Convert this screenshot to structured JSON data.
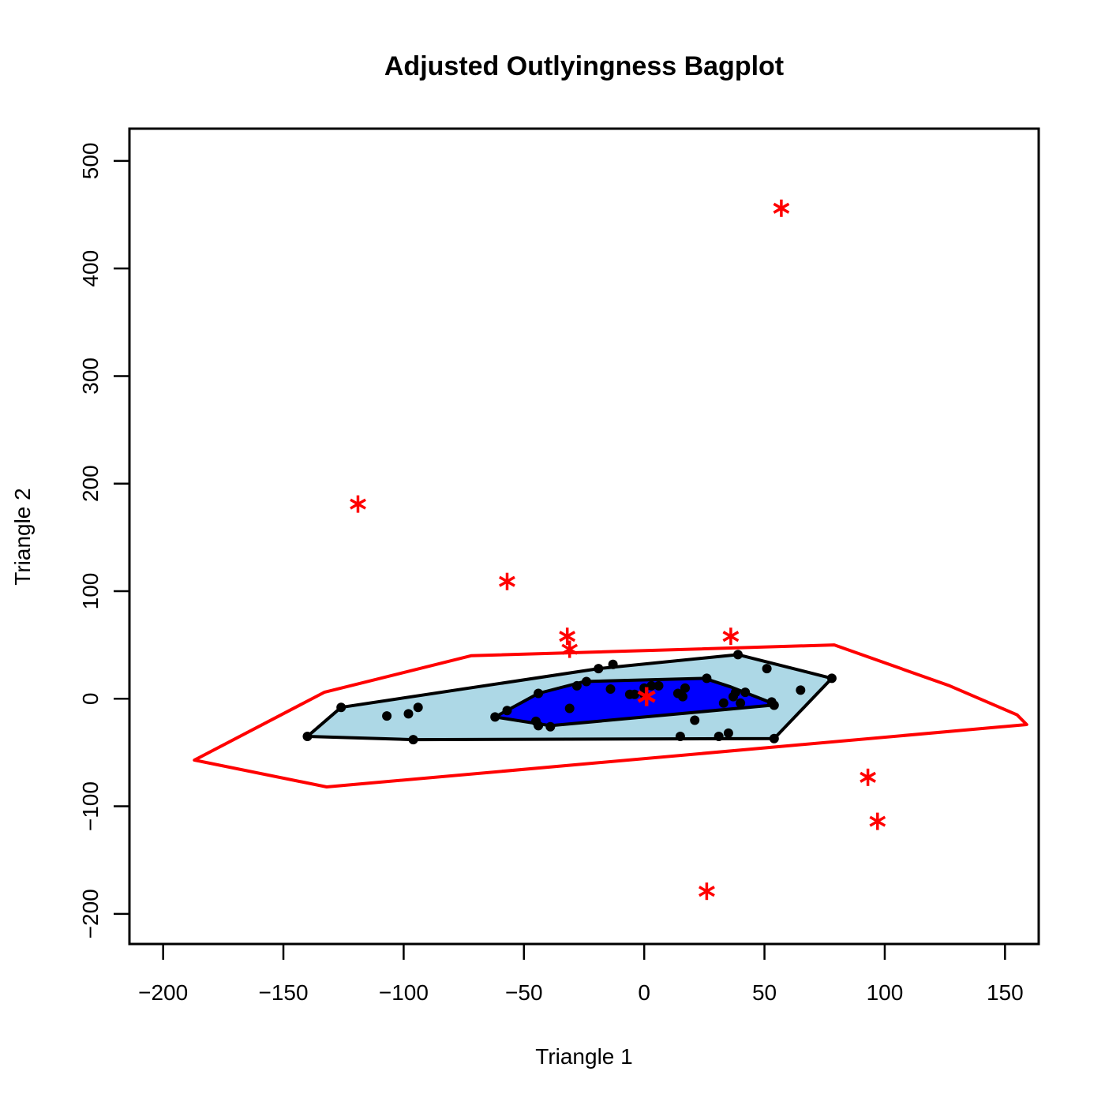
{
  "chart_data": {
    "type": "scatter",
    "title": "Adjusted Outlyingness Bagplot",
    "xlabel": "Triangle 1",
    "ylabel": "Triangle 2",
    "xlim": [
      -214,
      164
    ],
    "ylim": [
      -228,
      530
    ],
    "x_ticks": [
      -200,
      -150,
      -100,
      -50,
      0,
      50,
      100,
      150
    ],
    "x_tick_labels": [
      "−200",
      "−150",
      "−100",
      "−50",
      "0",
      "50",
      "100",
      "150"
    ],
    "y_ticks": [
      -200,
      -100,
      0,
      100,
      200,
      300,
      400,
      500
    ],
    "y_tick_labels": [
      "−200",
      "−100",
      "0",
      "100",
      "200",
      "300",
      "400",
      "500"
    ],
    "grid": false,
    "colors": {
      "bag": "#0000ff",
      "loop": "#add8e6",
      "fence": "#ff0000",
      "outlier": "#ff0000",
      "center": "#ff0000",
      "point": "#000000",
      "outline": "#000000"
    },
    "fence": [
      [
        -187,
        -57
      ],
      [
        -133,
        6
      ],
      [
        -72,
        40
      ],
      [
        79,
        50
      ],
      [
        127,
        12
      ],
      [
        155,
        -15
      ],
      [
        159,
        -24
      ],
      [
        -132,
        -82
      ]
    ],
    "loop": [
      [
        -140,
        -35
      ],
      [
        -126,
        -8
      ],
      [
        -19,
        28
      ],
      [
        39,
        41
      ],
      [
        78,
        19
      ],
      [
        54,
        -37
      ],
      [
        -96,
        -38
      ]
    ],
    "bag": [
      [
        -62,
        -17
      ],
      [
        -44,
        5
      ],
      [
        -25,
        16
      ],
      [
        25,
        19
      ],
      [
        36,
        11
      ],
      [
        52,
        -3
      ],
      [
        53,
        -6
      ],
      [
        -39,
        -25
      ]
    ],
    "points": [
      [
        -140,
        -35
      ],
      [
        -126,
        -8
      ],
      [
        -96,
        -38
      ],
      [
        -107,
        -16
      ],
      [
        -98,
        -14
      ],
      [
        -94,
        -8
      ],
      [
        -62,
        -17
      ],
      [
        -57,
        -11
      ],
      [
        -44,
        5
      ],
      [
        -45,
        -21
      ],
      [
        -44,
        -25
      ],
      [
        -39,
        -26
      ],
      [
        -31,
        -9
      ],
      [
        -28,
        12
      ],
      [
        -24,
        16
      ],
      [
        -19,
        28
      ],
      [
        -14,
        9
      ],
      [
        -13,
        32
      ],
      [
        -6,
        4
      ],
      [
        -4,
        4
      ],
      [
        0,
        10
      ],
      [
        0,
        4
      ],
      [
        3,
        12
      ],
      [
        6,
        12
      ],
      [
        14,
        5
      ],
      [
        16,
        2
      ],
      [
        17,
        10
      ],
      [
        15,
        -35
      ],
      [
        21,
        -20
      ],
      [
        26,
        19
      ],
      [
        31,
        -35
      ],
      [
        33,
        -4
      ],
      [
        35,
        -32
      ],
      [
        37,
        2
      ],
      [
        38,
        6
      ],
      [
        39,
        41
      ],
      [
        40,
        -4
      ],
      [
        42,
        6
      ],
      [
        51,
        28
      ],
      [
        53,
        -3
      ],
      [
        54,
        -6
      ],
      [
        54,
        -37
      ],
      [
        65,
        8
      ],
      [
        78,
        19
      ]
    ],
    "center": [
      1,
      2
    ],
    "outliers": [
      [
        57,
        456
      ],
      [
        -119,
        181
      ],
      [
        -57,
        109
      ],
      [
        -32,
        58
      ],
      [
        -31,
        46
      ],
      [
        36,
        58
      ],
      [
        93,
        -73
      ],
      [
        97,
        -114
      ],
      [
        26,
        -179
      ]
    ]
  }
}
